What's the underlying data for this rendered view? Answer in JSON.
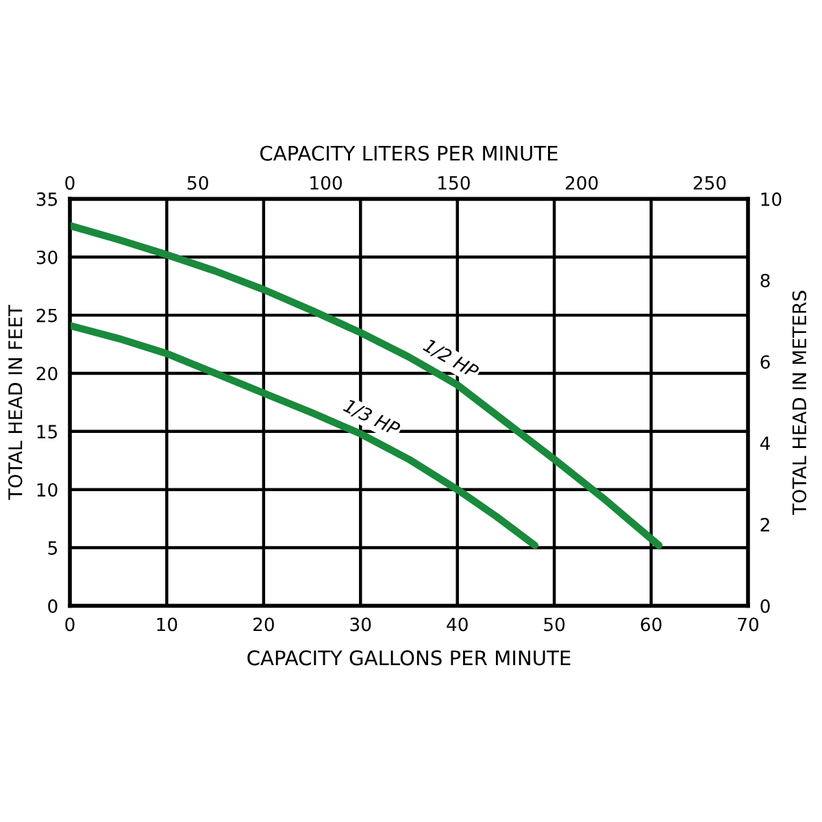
{
  "chart_data": {
    "type": "line",
    "xlabel": "CAPACITY GALLONS PER MINUTE",
    "ylabel": "TOTAL HEAD IN FEET",
    "x2label": "CAPACITY LITERS PER MINUTE",
    "y2label": "TOTAL HEAD IN METERS",
    "xlim": [
      0,
      70
    ],
    "xticks": [
      0,
      10,
      20,
      30,
      40,
      50,
      60,
      70
    ],
    "ylim": [
      0,
      35
    ],
    "yticks": [
      0,
      5,
      10,
      15,
      20,
      25,
      30,
      35
    ],
    "x2lim": [
      0,
      265
    ],
    "x2ticks": [
      0,
      50,
      100,
      150,
      200,
      250
    ],
    "y2lim": [
      0,
      10
    ],
    "y2ticks": [
      0,
      2,
      4,
      6,
      8,
      10
    ],
    "grid": true,
    "line_style": "solid",
    "series": [
      {
        "name": "1/2 HP",
        "color": "#1a8a3c",
        "x": [
          0,
          5,
          10,
          15,
          20,
          25,
          30,
          35,
          40,
          45,
          50,
          55,
          60.8
        ],
        "values": [
          32.7,
          31.5,
          30.2,
          28.8,
          27.2,
          25.4,
          23.5,
          21.4,
          19.0,
          15.8,
          12.6,
          9.3,
          5.2
        ]
      },
      {
        "name": "1/3 HP",
        "color": "#1a8a3c",
        "x": [
          0,
          5,
          10,
          15,
          20,
          25,
          30,
          35,
          40,
          44,
          48
        ],
        "values": [
          24.1,
          23.0,
          21.7,
          20.0,
          18.3,
          16.6,
          14.8,
          12.6,
          10.0,
          7.7,
          5.2
        ]
      }
    ]
  }
}
